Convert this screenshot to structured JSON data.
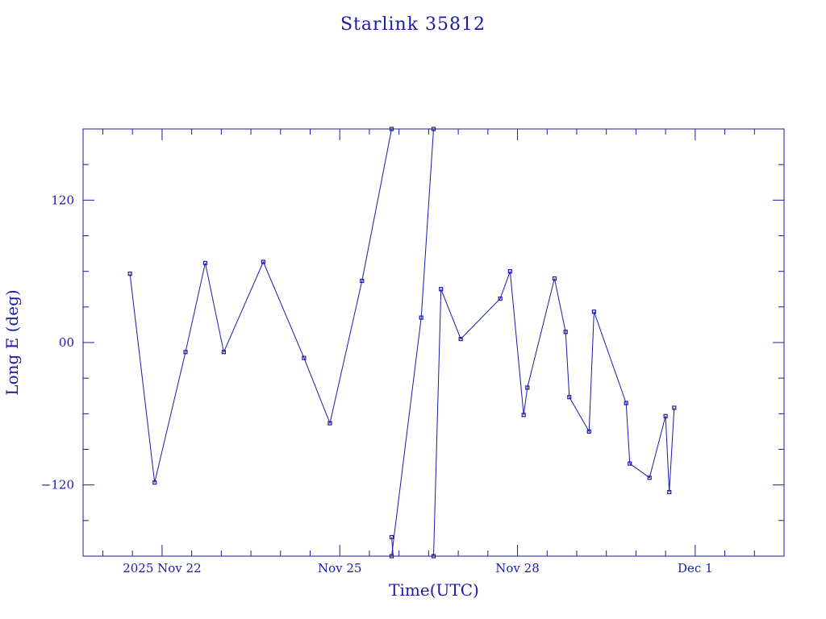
{
  "chart_data": {
    "type": "line",
    "title": "Starlink 35812",
    "xlabel": "Time(UTC)",
    "ylabel": "Long E (deg)",
    "x_ticks": [
      {
        "x": "2025-11-22",
        "label": "2025 Nov 22"
      },
      {
        "x": "2025-11-25",
        "label": "Nov 25"
      },
      {
        "x": "2025-11-28",
        "label": "Nov 28"
      },
      {
        "x": "2025-12-01",
        "label": "Dec  1"
      }
    ],
    "y_ticks": [
      {
        "y": 120,
        "label": "120"
      },
      {
        "y": 0,
        "label": "00"
      },
      {
        "y": -120,
        "label": "−120"
      }
    ],
    "xlim": [
      "2025-11-20T16:00",
      "2025-12-02T12:00"
    ],
    "ylim": [
      -180,
      180
    ],
    "grid": false,
    "color": "#1a1aa6",
    "series": [
      {
        "points": [
          {
            "x": "2025-11-21T11:00",
            "y": 58
          },
          {
            "x": "2025-11-21T21:00",
            "y": -118
          },
          {
            "x": "2025-11-22T09:30",
            "y": -8
          },
          {
            "x": "2025-11-22T17:30",
            "y": 67
          },
          {
            "x": "2025-11-23T01:00",
            "y": -8
          },
          {
            "x": "2025-11-23T17:00",
            "y": 68
          },
          {
            "x": "2025-11-24T09:30",
            "y": -13
          },
          {
            "x": "2025-11-24T20:00",
            "y": -68
          },
          {
            "x": "2025-11-25T09:00",
            "y": 52
          },
          {
            "x": "2025-11-25T21:00",
            "y": 180
          }
        ]
      },
      {
        "points": [
          {
            "x": "2025-11-25T21:00",
            "y": -180
          },
          {
            "x": "2025-11-26T09:00",
            "y": 21
          },
          {
            "x": "2025-11-26T14:00",
            "y": 180
          }
        ]
      },
      {
        "points": [
          {
            "x": "2025-11-26T14:00",
            "y": -180
          },
          {
            "x": "2025-11-26T17:00",
            "y": 45
          },
          {
            "x": "2025-11-27T01:00",
            "y": 3
          },
          {
            "x": "2025-11-27T17:00",
            "y": 37
          },
          {
            "x": "2025-11-27T21:00",
            "y": 60
          },
          {
            "x": "2025-11-28T02:30",
            "y": -61
          },
          {
            "x": "2025-11-28T04:00",
            "y": -38
          },
          {
            "x": "2025-11-28T15:00",
            "y": 54
          },
          {
            "x": "2025-11-28T19:30",
            "y": 9
          },
          {
            "x": "2025-11-28T21:00",
            "y": -46
          },
          {
            "x": "2025-11-29T05:00",
            "y": -75
          },
          {
            "x": "2025-11-29T07:00",
            "y": 26
          },
          {
            "x": "2025-11-29T20:00",
            "y": -51
          },
          {
            "x": "2025-11-29T21:30",
            "y": -102
          },
          {
            "x": "2025-11-30T05:30",
            "y": -114
          },
          {
            "x": "2025-11-30T12:00",
            "y": -62
          },
          {
            "x": "2025-11-30T13:30",
            "y": -126
          },
          {
            "x": "2025-11-30T15:30",
            "y": -55
          }
        ]
      }
    ],
    "extra_points": [
      {
        "x": "2025-11-25T21:00",
        "y": -164
      }
    ]
  }
}
